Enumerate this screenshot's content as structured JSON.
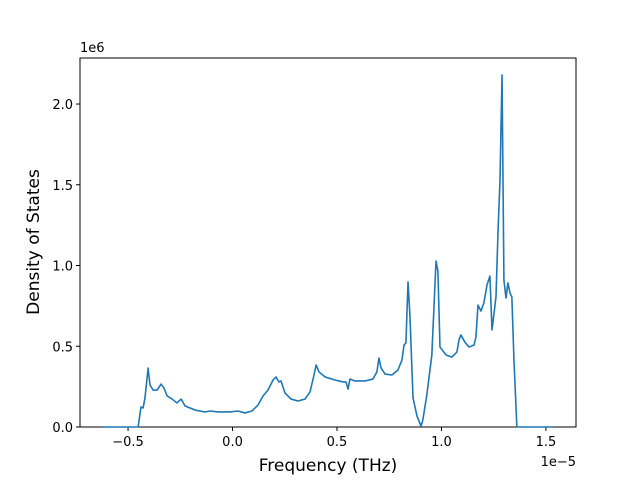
{
  "chart_data": {
    "type": "line",
    "xlabel": "Frequency (THz)",
    "ylabel": "Density of States",
    "x_offset_label": "1e−5",
    "y_offset_label": "1e6",
    "xlim": [
      -0.73,
      1.644
    ],
    "ylim": [
      0,
      2.285
    ],
    "xticks": [
      {
        "value": -0.5,
        "label": "−0.5"
      },
      {
        "value": 0,
        "label": "0.0"
      },
      0.5,
      {
        "value": 1,
        "label": "1.0"
      },
      1.5
    ],
    "yticks": [
      {
        "value": 0,
        "label": "0.0"
      },
      0.5,
      {
        "value": 1,
        "label": "1.0"
      },
      1.5,
      {
        "value": 2,
        "label": "2.0"
      }
    ],
    "grid": false,
    "series": [
      {
        "name": "Density of States",
        "color": "#1f77b4",
        "x": [
          -0.625,
          -0.452,
          -0.438,
          -0.428,
          -0.419,
          -0.404,
          -0.395,
          -0.38,
          -0.361,
          -0.342,
          -0.328,
          -0.313,
          -0.289,
          -0.266,
          -0.246,
          -0.227,
          -0.179,
          -0.132,
          -0.108,
          -0.069,
          -0.012,
          0.026,
          0.06,
          0.093,
          0.122,
          0.146,
          0.17,
          0.194,
          0.208,
          0.222,
          0.232,
          0.251,
          0.28,
          0.313,
          0.347,
          0.371,
          0.39,
          0.4,
          0.414,
          0.443,
          0.49,
          0.529,
          0.543,
          0.553,
          0.562,
          0.586,
          0.634,
          0.672,
          0.691,
          0.701,
          0.711,
          0.73,
          0.763,
          0.792,
          0.811,
          0.821,
          0.83,
          0.84,
          0.849,
          0.864,
          0.883,
          0.902,
          0.911,
          0.93,
          0.954,
          0.974,
          0.983,
          0.993,
          1.022,
          1.05,
          1.074,
          1.084,
          1.093,
          1.112,
          1.132,
          1.156,
          1.165,
          1.175,
          1.189,
          1.203,
          1.218,
          1.232,
          1.242,
          1.261,
          1.271,
          1.28,
          1.29,
          1.299,
          1.309,
          1.318,
          1.328,
          1.337,
          1.347,
          1.361,
          1.533
        ],
        "values": [
          0,
          0,
          0.124,
          0.118,
          0.18,
          0.365,
          0.26,
          0.229,
          0.229,
          0.266,
          0.241,
          0.192,
          0.173,
          0.149,
          0.173,
          0.13,
          0.105,
          0.093,
          0.099,
          0.093,
          0.093,
          0.099,
          0.087,
          0.099,
          0.136,
          0.192,
          0.229,
          0.291,
          0.31,
          0.279,
          0.285,
          0.211,
          0.173,
          0.161,
          0.173,
          0.217,
          0.322,
          0.384,
          0.341,
          0.31,
          0.291,
          0.279,
          0.279,
          0.235,
          0.297,
          0.285,
          0.285,
          0.297,
          0.341,
          0.427,
          0.365,
          0.328,
          0.322,
          0.353,
          0.415,
          0.508,
          0.52,
          0.898,
          0.693,
          0.18,
          0.068,
          0.006,
          0.043,
          0.198,
          0.446,
          1.028,
          0.966,
          0.495,
          0.446,
          0.433,
          0.464,
          0.539,
          0.57,
          0.526,
          0.495,
          0.508,
          0.557,
          0.755,
          0.718,
          0.768,
          0.879,
          0.935,
          0.601,
          0.805,
          1.22,
          1.517,
          2.18,
          0.91,
          0.799,
          0.892,
          0.83,
          0.805,
          0.415,
          0,
          0
        ]
      }
    ]
  }
}
